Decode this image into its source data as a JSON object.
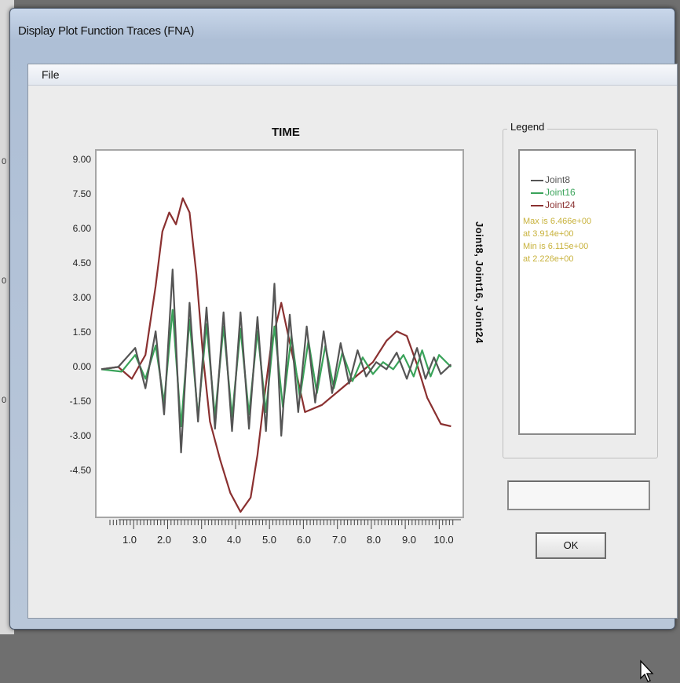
{
  "window": {
    "title": "Display Plot Function Traces (FNA)"
  },
  "menu": {
    "file_label": "File"
  },
  "backdrop": {
    "marks": [
      "0",
      "0",
      "0"
    ]
  },
  "plot": {
    "title": "TIME",
    "side_label": "Joint8, Joint16, Joint24",
    "y_ticks": [
      "9.00",
      "7.50",
      "6.00",
      "4.50",
      "3.00",
      "1.50",
      "0.00",
      "-1.50",
      "-3.00",
      "-4.50"
    ],
    "x_ticks": [
      "1.0",
      "2.0",
      "3.0",
      "4.0",
      "5.0",
      "6.0",
      "7.0",
      "8.0",
      "9.0",
      "10.0"
    ]
  },
  "legend": {
    "caption": "Legend",
    "items": [
      {
        "label": "Joint8",
        "color": "#555555"
      },
      {
        "label": "Joint16",
        "color": "#3aa35a"
      },
      {
        "label": "Joint24",
        "color": "#8a3030"
      }
    ],
    "notes": [
      "Max is 6.466e+00",
      "at 3.914e+00",
      "Min is 6.115e+00",
      "at 2.226e+00"
    ],
    "note_color": "#c8b23c"
  },
  "buttons": {
    "ok_label": "OK"
  },
  "chart_data": {
    "type": "line",
    "title": "TIME",
    "xlim": [
      0,
      10.5
    ],
    "ylim": [
      -6.0,
      9.0
    ],
    "y_ticks": [
      9.0,
      7.5,
      6.0,
      4.5,
      3.0,
      1.5,
      0.0,
      -1.5,
      -3.0,
      -4.5
    ],
    "x_ticks": [
      1,
      2,
      3,
      4,
      5,
      6,
      7,
      8,
      9,
      10
    ],
    "grid": false,
    "series": [
      {
        "name": "Joint8",
        "color": "#555555",
        "x": [
          0,
          0.5,
          1.0,
          1.3,
          1.6,
          1.85,
          2.1,
          2.35,
          2.6,
          2.85,
          3.1,
          3.35,
          3.6,
          3.85,
          4.1,
          4.35,
          4.6,
          4.85,
          5.1,
          5.3,
          5.55,
          5.8,
          6.05,
          6.3,
          6.55,
          6.8,
          7.05,
          7.3,
          7.55,
          7.8,
          8.1,
          8.4,
          8.7,
          9.0,
          9.3,
          9.55,
          9.8,
          10.0,
          10.3
        ],
        "y": [
          0.0,
          0.1,
          0.9,
          -0.8,
          1.6,
          -1.9,
          4.2,
          -3.5,
          2.8,
          -2.2,
          2.6,
          -2.5,
          2.4,
          -2.6,
          2.4,
          -2.5,
          2.2,
          -2.6,
          3.6,
          -2.8,
          2.3,
          -1.8,
          1.8,
          -1.4,
          1.6,
          -1.0,
          1.1,
          -0.6,
          0.8,
          -0.3,
          0.3,
          0.0,
          0.7,
          -0.4,
          0.9,
          -0.4,
          0.5,
          -0.2,
          0.2
        ]
      },
      {
        "name": "Joint16",
        "color": "#3aa35a",
        "x": [
          0,
          0.6,
          1.0,
          1.3,
          1.6,
          1.85,
          2.1,
          2.35,
          2.6,
          2.85,
          3.1,
          3.35,
          3.6,
          3.85,
          4.1,
          4.35,
          4.6,
          4.85,
          5.1,
          5.35,
          5.6,
          5.85,
          6.1,
          6.35,
          6.6,
          6.85,
          7.1,
          7.4,
          7.7,
          8.0,
          8.3,
          8.6,
          8.9,
          9.2,
          9.45,
          9.7,
          9.95,
          10.3
        ],
        "y": [
          0.0,
          -0.1,
          0.6,
          -0.4,
          1.0,
          -1.4,
          2.5,
          -2.4,
          2.1,
          -2.0,
          1.9,
          -2.0,
          1.8,
          -2.0,
          1.7,
          -1.9,
          1.6,
          -1.8,
          1.8,
          -1.6,
          1.4,
          -1.2,
          1.2,
          -1.0,
          1.0,
          -0.8,
          0.7,
          -0.5,
          0.5,
          -0.2,
          0.3,
          0.0,
          0.6,
          -0.3,
          0.8,
          -0.3,
          0.6,
          0.1
        ]
      },
      {
        "name": "Joint24",
        "color": "#8a3030",
        "x": [
          0,
          0.5,
          0.9,
          1.3,
          1.6,
          1.8,
          2.0,
          2.2,
          2.4,
          2.6,
          2.8,
          3.0,
          3.2,
          3.5,
          3.8,
          4.1,
          4.4,
          4.6,
          4.8,
          5.0,
          5.3,
          5.6,
          6.0,
          6.5,
          7.0,
          7.5,
          8.0,
          8.4,
          8.7,
          9.0,
          9.3,
          9.6,
          10.0,
          10.3
        ],
        "y": [
          0.0,
          0.1,
          -0.4,
          0.6,
          3.5,
          5.8,
          6.6,
          6.1,
          7.2,
          6.6,
          4.0,
          0.5,
          -2.2,
          -3.8,
          -5.2,
          -6.0,
          -5.4,
          -3.6,
          -1.2,
          1.0,
          2.8,
          0.8,
          -1.8,
          -1.5,
          -0.9,
          -0.3,
          0.3,
          1.2,
          1.6,
          1.4,
          0.2,
          -1.2,
          -2.3,
          -2.4
        ]
      }
    ]
  }
}
